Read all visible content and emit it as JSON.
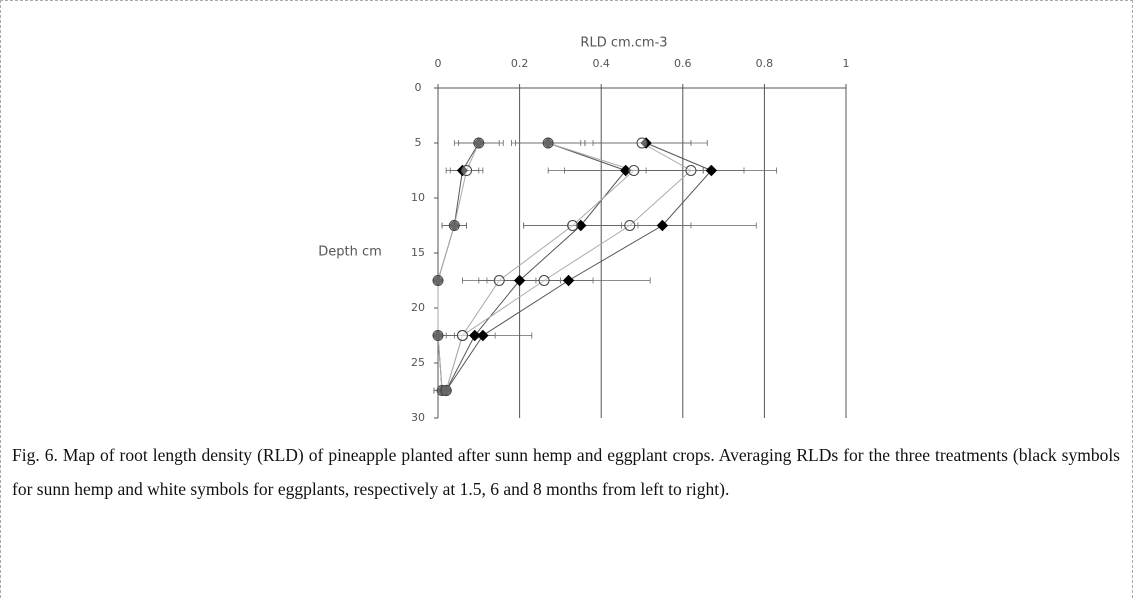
{
  "chart_data": {
    "type": "line",
    "x_label": "RLD cm.cm-3",
    "y_label": "Depth cm",
    "xlim": [
      0,
      1
    ],
    "xticks": [
      0,
      0.2,
      0.4,
      0.6,
      0.8,
      1
    ],
    "ylim": [
      0,
      30
    ],
    "yticks": [
      0,
      5,
      10,
      15,
      20,
      25,
      30
    ],
    "y_reversed": true,
    "grid": true,
    "depths": [
      5,
      7.5,
      12.5,
      17.5,
      22.5,
      27.5
    ],
    "series": [
      {
        "color": "#000000",
        "line_color": "#555555",
        "marker": "diamond",
        "values": [
          0.1,
          0.06,
          0.04,
          0.0,
          0.0,
          0.01
        ],
        "errors": [
          0.06,
          0.04,
          0.03,
          0.0,
          0.0,
          0.02
        ]
      },
      {
        "color": "#ffffff",
        "line_color": "#aaaaaa",
        "marker": "circle",
        "values": [
          0.1,
          0.07,
          0.04,
          0.0,
          0.0,
          0.01
        ],
        "errors": [
          0.05,
          0.04,
          0.03,
          0.0,
          0.0,
          0.02
        ]
      },
      {
        "color": "#000000",
        "line_color": "#555555",
        "marker": "diamond",
        "values": [
          0.27,
          0.46,
          0.35,
          0.2,
          0.09,
          0.02
        ],
        "errors": [
          0.09,
          0.19,
          0.14,
          0.1,
          0.05,
          0.01
        ]
      },
      {
        "color": "#ffffff",
        "line_color": "#aaaaaa",
        "marker": "circle",
        "values": [
          0.27,
          0.48,
          0.33,
          0.15,
          0.06,
          0.02
        ],
        "errors": [
          0.08,
          0.17,
          0.12,
          0.09,
          0.04,
          0.01
        ]
      },
      {
        "color": "#000000",
        "line_color": "#555555",
        "marker": "diamond",
        "values": [
          0.51,
          0.67,
          0.55,
          0.32,
          0.11,
          0.02
        ],
        "errors": [
          0.15,
          0.16,
          0.23,
          0.2,
          0.12,
          0.01
        ]
      },
      {
        "color": "#ffffff",
        "line_color": "#aaaaaa",
        "marker": "circle",
        "values": [
          0.5,
          0.62,
          0.47,
          0.26,
          0.06,
          0.02
        ],
        "errors": [
          0.12,
          0.13,
          0.15,
          0.12,
          0.05,
          0.01
        ]
      }
    ]
  },
  "caption": "Fig. 6. Map of root length density (RLD) of pineapple planted after sunn hemp and eggplant crops. Averaging RLDs for the three treatments (black symbols for sunn hemp and white symbols for eggplants, respectively at 1.5, 6 and 8 months from left to right)."
}
